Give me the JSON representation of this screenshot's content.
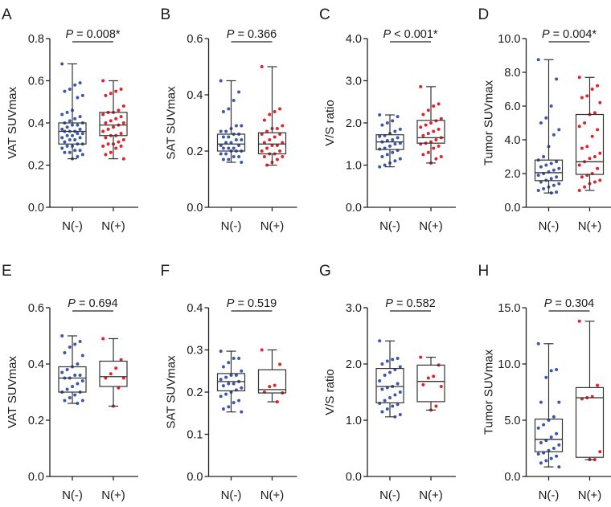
{
  "colors": {
    "n_neg": "#3d58a8",
    "n_pos": "#e0232c",
    "axis": "#222222",
    "box": "#333333"
  },
  "chart_data": [
    {
      "type": "box",
      "panel": "A",
      "ylabel": "VAT SUVmax",
      "p_label": "P",
      "p_text": " = 0.008*",
      "ylim": [
        0,
        0.8
      ],
      "yticks": [
        0,
        0.2,
        0.4,
        0.6,
        0.8
      ],
      "ytick_labels": [
        "0.0",
        "0.2",
        "0.4",
        "0.6",
        "0.8"
      ],
      "categories": [
        "N(-)",
        "N(+)"
      ],
      "groups": [
        {
          "name": "N(-)",
          "min": 0.23,
          "q1": 0.3,
          "median": 0.36,
          "q3": 0.4,
          "max": 0.68,
          "points": [
            0.68,
            0.59,
            0.58,
            0.56,
            0.55,
            0.53,
            0.52,
            0.46,
            0.45,
            0.44,
            0.43,
            0.42,
            0.41,
            0.4,
            0.4,
            0.39,
            0.39,
            0.38,
            0.37,
            0.37,
            0.36,
            0.36,
            0.36,
            0.35,
            0.35,
            0.34,
            0.34,
            0.33,
            0.33,
            0.32,
            0.32,
            0.31,
            0.3,
            0.3,
            0.29,
            0.29,
            0.28,
            0.27,
            0.27,
            0.26,
            0.26,
            0.25,
            0.24,
            0.23
          ]
        },
        {
          "name": "N(+)",
          "min": 0.23,
          "q1": 0.34,
          "median": 0.39,
          "q3": 0.45,
          "max": 0.6,
          "points": [
            0.6,
            0.56,
            0.55,
            0.54,
            0.53,
            0.48,
            0.46,
            0.45,
            0.45,
            0.44,
            0.43,
            0.42,
            0.41,
            0.4,
            0.4,
            0.39,
            0.38,
            0.37,
            0.36,
            0.35,
            0.34,
            0.34,
            0.33,
            0.32,
            0.31,
            0.3,
            0.3,
            0.29,
            0.29,
            0.28,
            0.26,
            0.25,
            0.23
          ]
        }
      ]
    },
    {
      "type": "box",
      "panel": "B",
      "ylabel": "SAT SUVmax",
      "p_label": "P",
      "p_text": " = 0.366",
      "ylim": [
        0,
        0.6
      ],
      "yticks": [
        0,
        0.2,
        0.4,
        0.6
      ],
      "ytick_labels": [
        "0.0",
        "0.2",
        "0.4",
        "0.6"
      ],
      "categories": [
        "N(-)",
        "N(+)"
      ],
      "groups": [
        {
          "name": "N(-)",
          "min": 0.16,
          "q1": 0.2,
          "median": 0.225,
          "q3": 0.26,
          "max": 0.45,
          "points": [
            0.45,
            0.41,
            0.38,
            0.35,
            0.34,
            0.29,
            0.29,
            0.28,
            0.27,
            0.27,
            0.26,
            0.26,
            0.25,
            0.25,
            0.24,
            0.24,
            0.23,
            0.23,
            0.22,
            0.22,
            0.21,
            0.21,
            0.21,
            0.2,
            0.2,
            0.2,
            0.19,
            0.19,
            0.18,
            0.18,
            0.17,
            0.17,
            0.16
          ]
        },
        {
          "name": "N(+)",
          "min": 0.15,
          "q1": 0.19,
          "median": 0.225,
          "q3": 0.265,
          "max": 0.5,
          "points": [
            0.5,
            0.35,
            0.34,
            0.33,
            0.31,
            0.29,
            0.28,
            0.28,
            0.27,
            0.26,
            0.26,
            0.25,
            0.24,
            0.23,
            0.23,
            0.22,
            0.22,
            0.21,
            0.2,
            0.2,
            0.19,
            0.19,
            0.18,
            0.18,
            0.17,
            0.16,
            0.15
          ]
        }
      ]
    },
    {
      "type": "box",
      "panel": "C",
      "ylabel": "V/S ratio",
      "p_label": "P",
      "p_text": " < 0.001*",
      "ylim": [
        0,
        4
      ],
      "yticks": [
        0,
        1,
        2,
        3,
        4
      ],
      "ytick_labels": [
        "0.0",
        "1.0",
        "2.0",
        "3.0",
        "4.0"
      ],
      "categories": [
        "N(-)",
        "N(+)"
      ],
      "groups": [
        {
          "name": "N(-)",
          "min": 0.96,
          "q1": 1.37,
          "median": 1.55,
          "q3": 1.72,
          "max": 2.19,
          "points": [
            2.19,
            2.15,
            2.05,
            2.0,
            1.95,
            1.85,
            1.8,
            1.75,
            1.7,
            1.68,
            1.65,
            1.6,
            1.58,
            1.55,
            1.52,
            1.5,
            1.45,
            1.4,
            1.38,
            1.35,
            1.3,
            1.25,
            1.2,
            1.15,
            1.1,
            1.05,
            1.0,
            0.96
          ]
        },
        {
          "name": "N(+)",
          "min": 1.05,
          "q1": 1.52,
          "median": 1.65,
          "q3": 2.06,
          "max": 2.86,
          "points": [
            2.86,
            2.45,
            2.4,
            2.3,
            2.2,
            2.1,
            2.05,
            2.0,
            1.95,
            1.9,
            1.85,
            1.8,
            1.75,
            1.7,
            1.65,
            1.6,
            1.55,
            1.52,
            1.5,
            1.45,
            1.4,
            1.3,
            1.25,
            1.2,
            1.15,
            1.05
          ]
        }
      ]
    },
    {
      "type": "box",
      "panel": "D",
      "ylabel": "Tumor SUVmax",
      "p_label": "P",
      "p_text": " = 0.004*",
      "ylim": [
        0,
        10
      ],
      "yticks": [
        0,
        2,
        4,
        6,
        8,
        10
      ],
      "ytick_labels": [
        "0.0",
        "2.0",
        "4.0",
        "6.0",
        "8.0",
        "10.0"
      ],
      "categories": [
        "N(-)",
        "N(+)"
      ],
      "groups": [
        {
          "name": "N(-)",
          "min": 0.85,
          "q1": 1.58,
          "median": 2.05,
          "q3": 2.8,
          "max": 8.75,
          "points": [
            8.75,
            7.6,
            6.0,
            5.3,
            5.0,
            4.6,
            4.3,
            3.6,
            3.0,
            2.8,
            2.7,
            2.6,
            2.5,
            2.4,
            2.3,
            2.2,
            2.1,
            2.0,
            1.9,
            1.8,
            1.7,
            1.6,
            1.5,
            1.4,
            1.3,
            1.2,
            1.1,
            1.0,
            0.9,
            0.85
          ]
        },
        {
          "name": "N(+)",
          "min": 1.0,
          "q1": 1.95,
          "median": 2.7,
          "q3": 5.5,
          "max": 7.7,
          "points": [
            7.7,
            7.2,
            7.0,
            6.6,
            6.5,
            6.2,
            5.6,
            5.5,
            5.0,
            4.8,
            4.6,
            4.2,
            3.6,
            3.5,
            3.2,
            3.0,
            2.9,
            2.7,
            2.5,
            2.3,
            2.0,
            1.9,
            1.8,
            1.6,
            1.5,
            1.4,
            1.2,
            1.0
          ]
        }
      ]
    },
    {
      "type": "box",
      "panel": "E",
      "ylabel": "VAT SUVmax",
      "p_label": "P",
      "p_text": " = 0.694",
      "ylim": [
        0,
        0.6
      ],
      "yticks": [
        0,
        0.2,
        0.4,
        0.6
      ],
      "ytick_labels": [
        "0.0",
        "0.2",
        "0.4",
        "0.6"
      ],
      "categories": [
        "N(-)",
        "N(+)"
      ],
      "groups": [
        {
          "name": "N(-)",
          "min": 0.26,
          "q1": 0.3,
          "median": 0.35,
          "q3": 0.39,
          "max": 0.5,
          "points": [
            0.5,
            0.48,
            0.47,
            0.46,
            0.44,
            0.43,
            0.4,
            0.39,
            0.38,
            0.37,
            0.36,
            0.36,
            0.35,
            0.35,
            0.34,
            0.33,
            0.32,
            0.31,
            0.3,
            0.3,
            0.29,
            0.28,
            0.27,
            0.27,
            0.26
          ]
        },
        {
          "name": "N(+)",
          "min": 0.25,
          "q1": 0.32,
          "median": 0.355,
          "q3": 0.41,
          "max": 0.49,
          "points": [
            0.49,
            0.415,
            0.385,
            0.365,
            0.35,
            0.35,
            0.315,
            0.25
          ]
        }
      ]
    },
    {
      "type": "box",
      "panel": "F",
      "ylabel": "SAT SUVmax",
      "p_label": "P",
      "p_text": " = 0.519",
      "ylim": [
        0,
        0.4
      ],
      "yticks": [
        0,
        0.1,
        0.2,
        0.3,
        0.4
      ],
      "ytick_labels": [
        "0.0",
        "0.1",
        "0.2",
        "0.3",
        "0.4"
      ],
      "categories": [
        "N(-)",
        "N(+)"
      ],
      "groups": [
        {
          "name": "N(-)",
          "min": 0.153,
          "q1": 0.203,
          "median": 0.225,
          "q3": 0.244,
          "max": 0.297,
          "points": [
            0.297,
            0.28,
            0.28,
            0.27,
            0.26,
            0.25,
            0.24,
            0.24,
            0.235,
            0.23,
            0.225,
            0.22,
            0.22,
            0.215,
            0.21,
            0.205,
            0.2,
            0.195,
            0.19,
            0.18,
            0.175,
            0.165,
            0.16,
            0.153
          ]
        },
        {
          "name": "N(+)",
          "min": 0.177,
          "q1": 0.198,
          "median": 0.206,
          "q3": 0.253,
          "max": 0.3,
          "points": [
            0.3,
            0.266,
            0.216,
            0.213,
            0.2,
            0.198,
            0.177
          ]
        }
      ]
    },
    {
      "type": "box",
      "panel": "G",
      "ylabel": "V/S ratio",
      "p_label": "P",
      "p_text": " = 0.582",
      "ylim": [
        0,
        3
      ],
      "yticks": [
        0,
        1,
        2,
        3
      ],
      "ytick_labels": [
        "0.0",
        "1.0",
        "2.0",
        "3.0"
      ],
      "categories": [
        "N(-)",
        "N(+)"
      ],
      "groups": [
        {
          "name": "N(-)",
          "min": 1.06,
          "q1": 1.31,
          "median": 1.6,
          "q3": 1.92,
          "max": 2.41,
          "points": [
            2.41,
            2.1,
            2.08,
            2.05,
            2.0,
            1.95,
            1.9,
            1.85,
            1.8,
            1.7,
            1.65,
            1.6,
            1.58,
            1.55,
            1.5,
            1.45,
            1.4,
            1.35,
            1.3,
            1.28,
            1.25,
            1.2,
            1.15,
            1.1,
            1.06
          ]
        },
        {
          "name": "N(+)",
          "min": 1.18,
          "q1": 1.33,
          "median": 1.69,
          "q3": 1.98,
          "max": 2.12,
          "points": [
            2.12,
            1.98,
            1.78,
            1.75,
            1.63,
            1.6,
            1.25,
            1.18
          ]
        }
      ]
    },
    {
      "type": "box",
      "panel": "H",
      "ylabel": "Tumor SUVmax",
      "p_label": "P",
      "p_text": " = 0.304",
      "ylim": [
        0,
        15
      ],
      "yticks": [
        0,
        5,
        10,
        15
      ],
      "ytick_labels": [
        "0.0",
        "5.0",
        "10.0",
        "15.0"
      ],
      "categories": [
        "N(-)",
        "N(+)"
      ],
      "groups": [
        {
          "name": "N(-)",
          "min": 0.85,
          "q1": 2.2,
          "median": 3.3,
          "q3": 5.1,
          "max": 11.8,
          "points": [
            11.8,
            9.5,
            9.4,
            8.8,
            6.6,
            6.6,
            5.3,
            5.0,
            4.6,
            4.3,
            3.8,
            3.5,
            3.2,
            3.0,
            2.8,
            2.5,
            2.3,
            2.1,
            2.0,
            1.8,
            1.6,
            1.4,
            1.2,
            0.85
          ]
        },
        {
          "name": "N(+)",
          "min": 1.5,
          "q1": 1.7,
          "median": 7.0,
          "q3": 7.9,
          "max": 13.8,
          "points": [
            13.8,
            8.1,
            7.1,
            7.0,
            6.9,
            2.2,
            1.5,
            1.5
          ]
        }
      ]
    }
  ]
}
